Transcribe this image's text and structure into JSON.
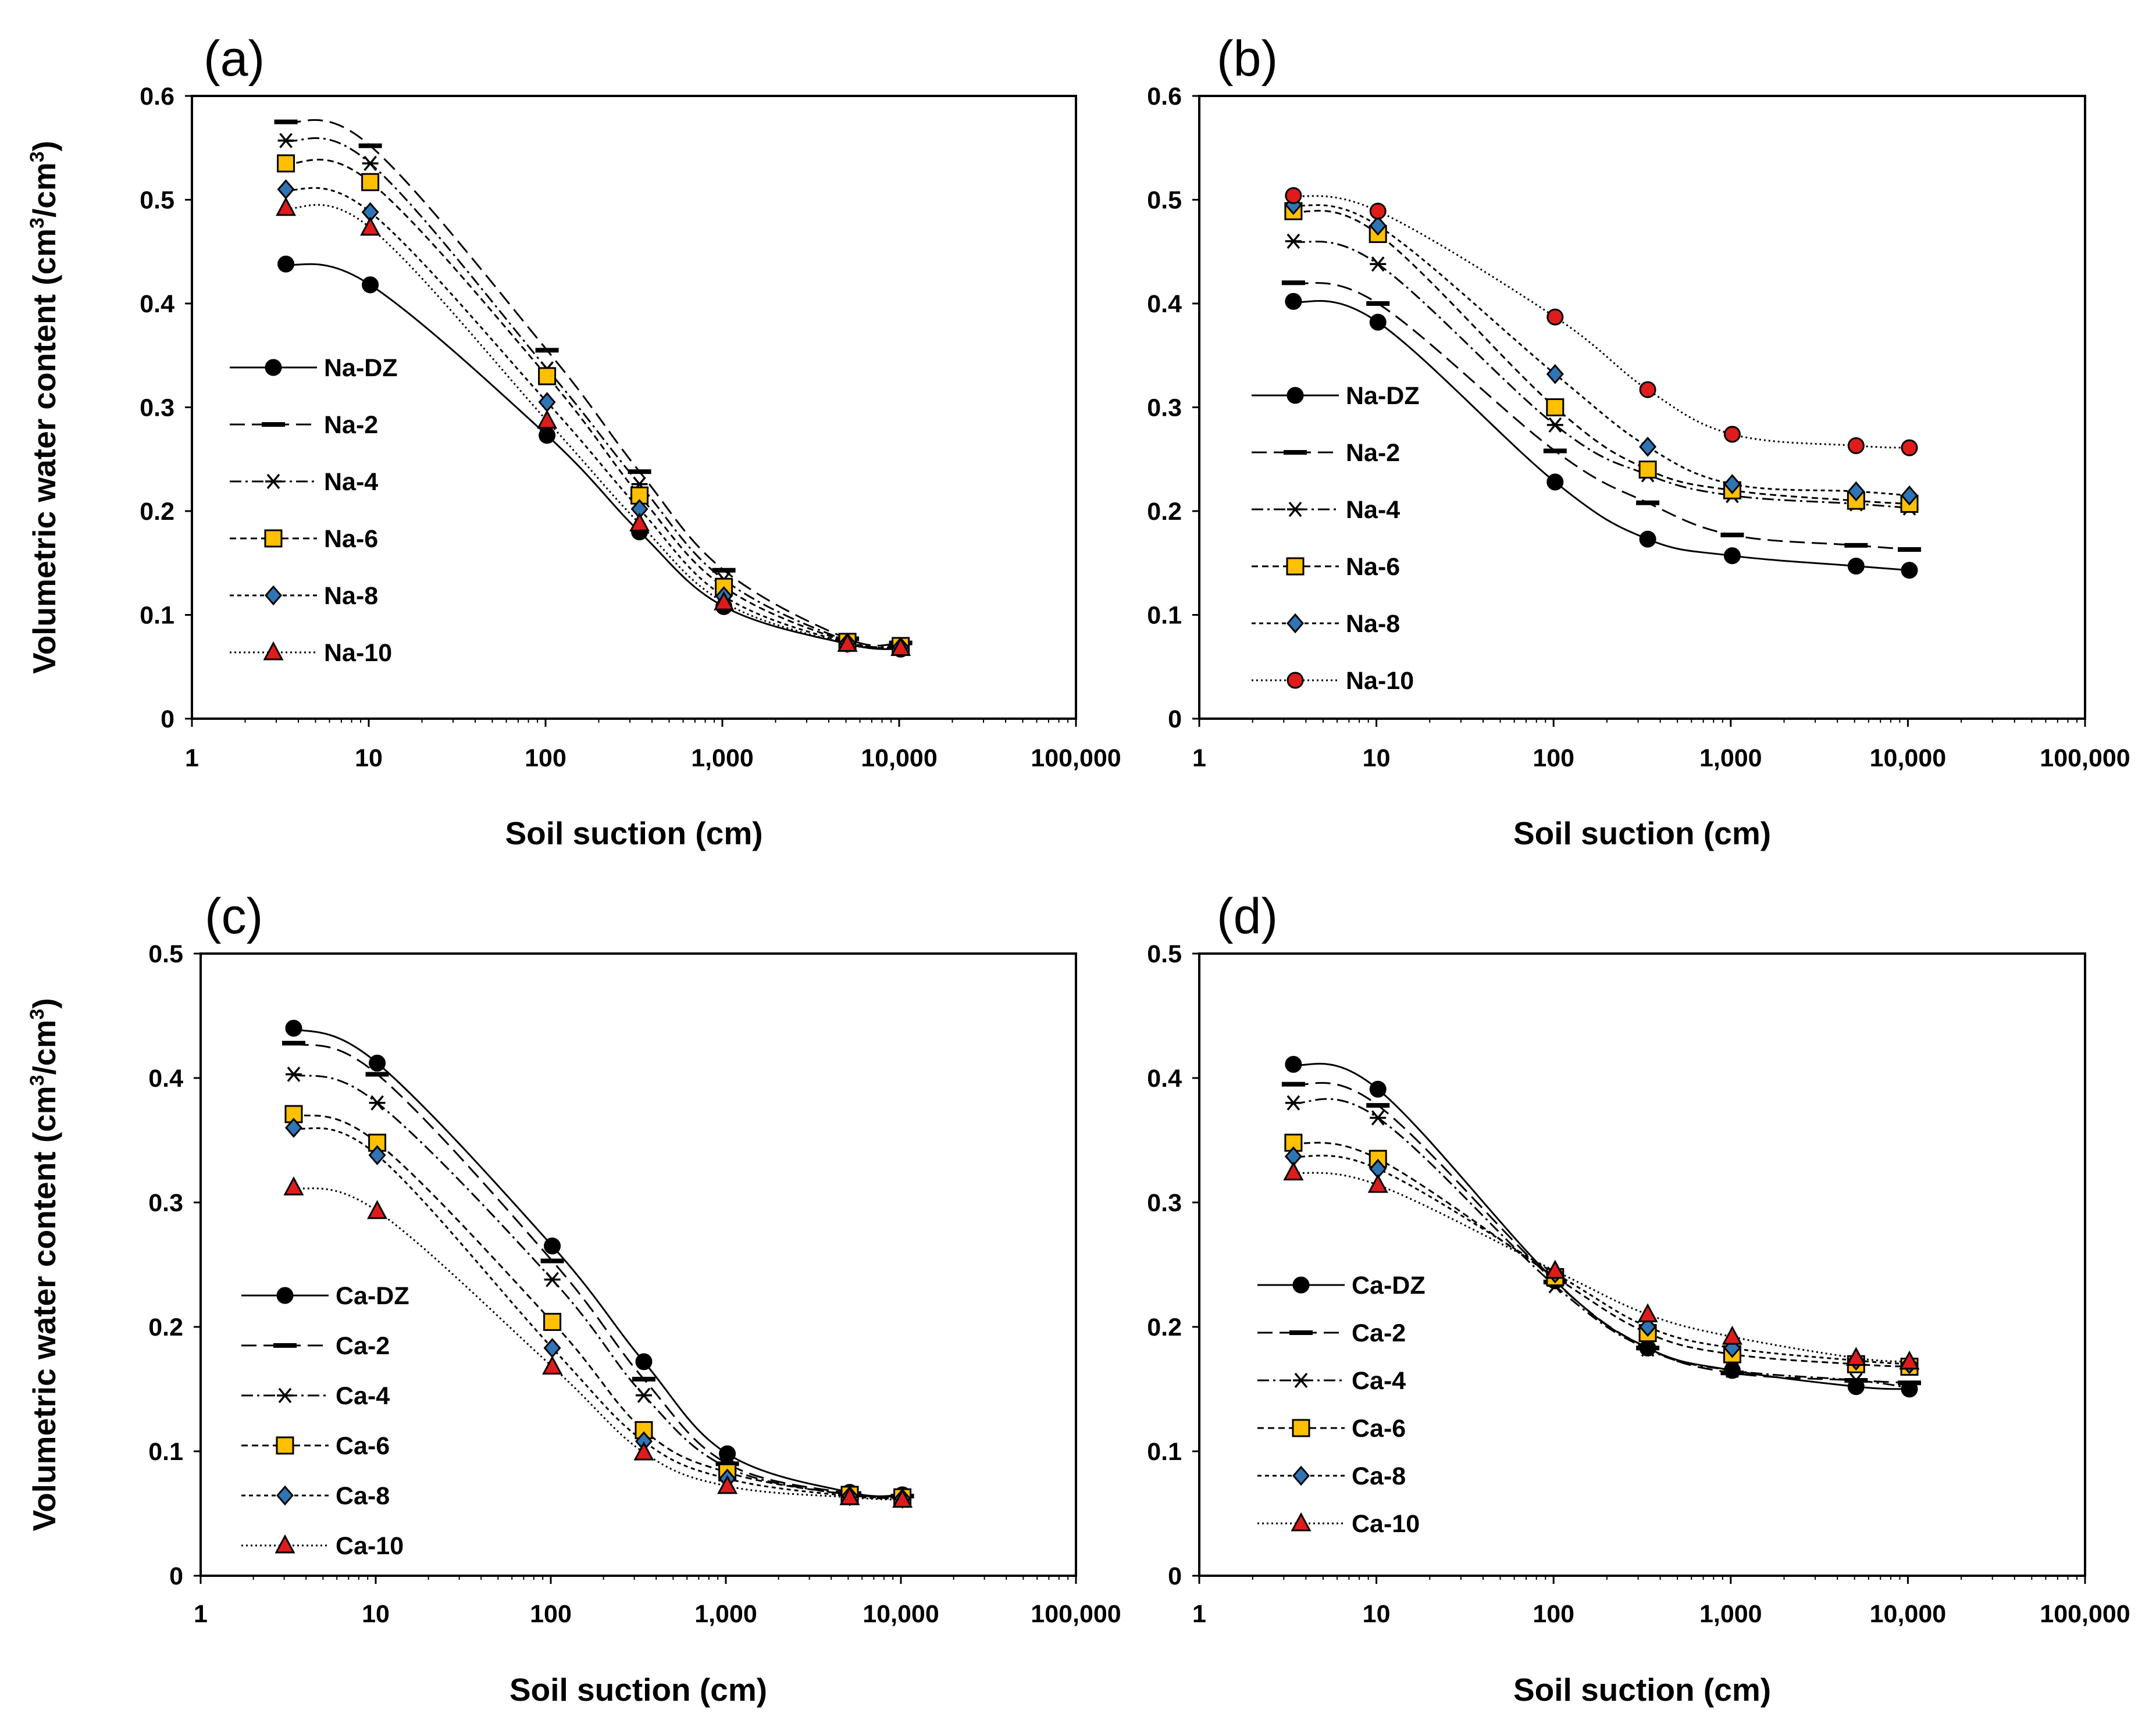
{
  "chart_data": [
    {
      "type": "line",
      "panel_label": "(a)",
      "xlabel": "Soil suction (cm)",
      "ylabel_main": "Volumetric water content (cm",
      "ylabel_sup1": "3",
      "ylabel_mid": "/cm",
      "ylabel_sup2": "3",
      "ylabel_end": ")",
      "xscale": "log",
      "xlim": [
        1,
        100000
      ],
      "ylim": [
        0,
        0.6
      ],
      "y_ticks": [
        "0",
        "0.1",
        "0.2",
        "0.3",
        "0.4",
        "0.5",
        "0.6"
      ],
      "x_ticks": [
        "1",
        "10",
        "100",
        "1,000",
        "10,000",
        "100,000"
      ],
      "legend_position": "left",
      "x": [
        3.4,
        10.2,
        102,
        340,
        1020,
        5100,
        10200
      ],
      "series": [
        {
          "name": "Na-DZ",
          "values": [
            0.438,
            0.418,
            0.273,
            0.18,
            0.108,
            0.072,
            0.067
          ],
          "marker": "circle",
          "color": "#000000",
          "dash": ""
        },
        {
          "name": "Na-2",
          "values": [
            0.575,
            0.552,
            0.355,
            0.238,
            0.143,
            0.077,
            0.073
          ],
          "marker": "dash",
          "color": "#000000",
          "dash": "26,12"
        },
        {
          "name": "Na-4",
          "values": [
            0.557,
            0.535,
            0.337,
            0.226,
            0.134,
            0.075,
            0.071
          ],
          "marker": "star",
          "color": "#000000",
          "dash": "20,7,4,7"
        },
        {
          "name": "Na-6",
          "values": [
            0.535,
            0.517,
            0.33,
            0.215,
            0.127,
            0.074,
            0.07
          ],
          "marker": "square",
          "color": "#ffc000",
          "dash": "11,7"
        },
        {
          "name": "Na-8",
          "values": [
            0.51,
            0.488,
            0.305,
            0.202,
            0.118,
            0.073,
            0.069
          ],
          "marker": "diamond",
          "color": "#2e75b6",
          "dash": "7,6"
        },
        {
          "name": "Na-10",
          "values": [
            0.492,
            0.473,
            0.287,
            0.188,
            0.112,
            0.072,
            0.068
          ],
          "marker": "triangle",
          "color": "#e01b1b",
          "dash": "3,5"
        }
      ]
    },
    {
      "type": "line",
      "panel_label": "(b)",
      "xlabel": "Soil suction (cm)",
      "xscale": "log",
      "xlim": [
        1,
        100000
      ],
      "ylim": [
        0,
        0.6
      ],
      "y_ticks": [
        "0",
        "0.1",
        "0.2",
        "0.3",
        "0.4",
        "0.5",
        "0.6"
      ],
      "x_ticks": [
        "1",
        "10",
        "100",
        "1,000",
        "10,000",
        "100,000"
      ],
      "legend_position": "left",
      "x": [
        3.4,
        10.2,
        102,
        340,
        1020,
        5100,
        10200
      ],
      "series": [
        {
          "name": "Na-DZ",
          "values": [
            0.402,
            0.382,
            0.228,
            0.173,
            0.157,
            0.147,
            0.143
          ],
          "marker": "circle",
          "color": "#000000",
          "dash": ""
        },
        {
          "name": "Na-2",
          "values": [
            0.42,
            0.4,
            0.258,
            0.208,
            0.177,
            0.167,
            0.163
          ],
          "marker": "dash",
          "color": "#000000",
          "dash": "26,12"
        },
        {
          "name": "Na-4",
          "values": [
            0.46,
            0.438,
            0.283,
            0.235,
            0.215,
            0.207,
            0.203
          ],
          "marker": "star",
          "color": "#000000",
          "dash": "20,7,4,7"
        },
        {
          "name": "Na-6",
          "values": [
            0.489,
            0.467,
            0.3,
            0.24,
            0.22,
            0.21,
            0.207
          ],
          "marker": "square",
          "color": "#ffc000",
          "dash": "11,7"
        },
        {
          "name": "Na-8",
          "values": [
            0.495,
            0.475,
            0.332,
            0.262,
            0.226,
            0.219,
            0.215
          ],
          "marker": "diamond",
          "color": "#2e75b6",
          "dash": "7,6"
        },
        {
          "name": "Na-10",
          "values": [
            0.504,
            0.489,
            0.387,
            0.317,
            0.274,
            0.263,
            0.261
          ],
          "marker": "circle",
          "color": "#e01b1b",
          "dash": "3,5"
        }
      ]
    },
    {
      "type": "line",
      "panel_label": "(c)",
      "xlabel": "Soil suction (cm)",
      "ylabel_main": "Volumetric water content (cm",
      "ylabel_sup1": "3",
      "ylabel_mid": "/cm",
      "ylabel_sup2": "3",
      "ylabel_end": ")",
      "xscale": "log",
      "xlim": [
        1,
        100000
      ],
      "ylim": [
        0,
        0.5
      ],
      "y_ticks": [
        "0",
        "0.1",
        "0.2",
        "0.3",
        "0.4",
        "0.5"
      ],
      "x_ticks": [
        "1",
        "10",
        "100",
        "1,000",
        "10,000",
        "100,000"
      ],
      "legend_position": "left",
      "x": [
        3.4,
        10.2,
        102,
        340,
        1020,
        5100,
        10200
      ],
      "series": [
        {
          "name": "Ca-DZ",
          "values": [
            0.44,
            0.412,
            0.265,
            0.172,
            0.098,
            0.067,
            0.065
          ],
          "marker": "circle",
          "color": "#000000",
          "dash": ""
        },
        {
          "name": "Ca-2",
          "values": [
            0.428,
            0.403,
            0.253,
            0.158,
            0.09,
            0.066,
            0.064
          ],
          "marker": "dash",
          "color": "#000000",
          "dash": "26,12"
        },
        {
          "name": "Ca-4",
          "values": [
            0.403,
            0.38,
            0.238,
            0.145,
            0.087,
            0.065,
            0.063
          ],
          "marker": "star",
          "color": "#000000",
          "dash": "20,7,4,7"
        },
        {
          "name": "Ca-6",
          "values": [
            0.371,
            0.348,
            0.204,
            0.117,
            0.083,
            0.065,
            0.063
          ],
          "marker": "square",
          "color": "#ffc000",
          "dash": "11,7"
        },
        {
          "name": "Ca-8",
          "values": [
            0.36,
            0.338,
            0.183,
            0.108,
            0.078,
            0.064,
            0.062
          ],
          "marker": "diamond",
          "color": "#2e75b6",
          "dash": "7,6"
        },
        {
          "name": "Ca-10",
          "values": [
            0.312,
            0.293,
            0.168,
            0.099,
            0.072,
            0.063,
            0.061
          ],
          "marker": "triangle",
          "color": "#e01b1b",
          "dash": "3,5"
        }
      ]
    },
    {
      "type": "line",
      "panel_label": "(d)",
      "xlabel": "Soil suction (cm)",
      "xscale": "log",
      "xlim": [
        1,
        100000
      ],
      "ylim": [
        0,
        0.5
      ],
      "y_ticks": [
        "0",
        "0.1",
        "0.2",
        "0.3",
        "0.4",
        "0.5"
      ],
      "x_ticks": [
        "1",
        "10",
        "100",
        "1,000",
        "10,000",
        "100,000"
      ],
      "legend_position": "left",
      "x": [
        3.4,
        10.2,
        102,
        340,
        1020,
        5100,
        10200
      ],
      "series": [
        {
          "name": "Ca-DZ",
          "values": [
            0.411,
            0.391,
            0.237,
            0.183,
            0.165,
            0.152,
            0.15
          ],
          "marker": "circle",
          "color": "#000000",
          "dash": ""
        },
        {
          "name": "Ca-2",
          "values": [
            0.395,
            0.378,
            0.236,
            0.183,
            0.163,
            0.157,
            0.155
          ],
          "marker": "dash",
          "color": "#000000",
          "dash": "26,12"
        },
        {
          "name": "Ca-4",
          "values": [
            0.38,
            0.368,
            0.233,
            0.182,
            0.165,
            0.157,
            0.151
          ],
          "marker": "star",
          "color": "#000000",
          "dash": "20,7,4,7"
        },
        {
          "name": "Ca-6",
          "values": [
            0.348,
            0.335,
            0.24,
            0.195,
            0.178,
            0.17,
            0.168
          ],
          "marker": "square",
          "color": "#ffc000",
          "dash": "11,7"
        },
        {
          "name": "Ca-8",
          "values": [
            0.337,
            0.327,
            0.243,
            0.2,
            0.183,
            0.173,
            0.17
          ],
          "marker": "diamond",
          "color": "#2e75b6",
          "dash": "7,6"
        },
        {
          "name": "Ca-10",
          "values": [
            0.324,
            0.314,
            0.245,
            0.21,
            0.192,
            0.175,
            0.172
          ],
          "marker": "triangle",
          "color": "#e01b1b",
          "dash": "3,5"
        }
      ]
    }
  ]
}
